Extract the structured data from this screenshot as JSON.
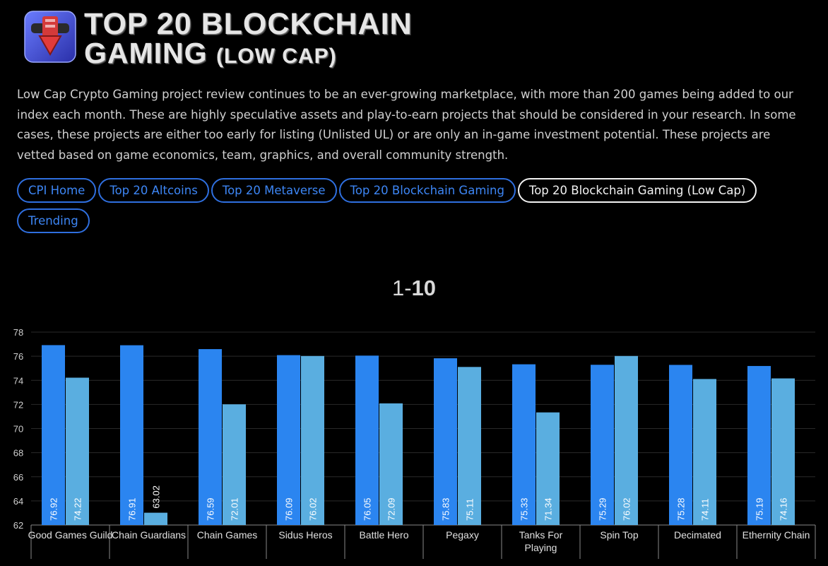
{
  "header": {
    "title_line1": "TOP 20 BLOCKCHAIN",
    "title_line2_main": "GAMING",
    "title_line2_sub": "(LOW CAP)"
  },
  "intro_text": "Low Cap Crypto Gaming project review continues to be an ever-growing marketplace, with more than 200 games being added to our index each month. These are highly speculative assets and play-to-earn projects that should be considered in your research. In some cases, these projects are either too early for listing (Unlisted UL) or are only an in-game investment potential. These projects are vetted based on game economics, team, graphics, and overall community strength.",
  "nav": {
    "items": [
      {
        "label": "CPI Home",
        "active": false
      },
      {
        "label": "Top 20 Altcoins",
        "active": false
      },
      {
        "label": "Top 20 Metaverse",
        "active": false
      },
      {
        "label": "Top 20 Blockchain Gaming",
        "active": false
      },
      {
        "label": "Top 20 Blockchain Gaming (Low Cap)",
        "active": true
      },
      {
        "label": "Trending",
        "active": false
      }
    ]
  },
  "chart_title": {
    "prefix": "1-",
    "bold": "10"
  },
  "colors": {
    "series1": "#2b85f0",
    "series2": "#5aaee0",
    "pill_border": "#2f6fdf",
    "pill_text": "#3d86f5",
    "background": "#000000"
  },
  "icons": {
    "logo": "blockchain-gaming-logo"
  },
  "chart_data": {
    "type": "bar",
    "title": "1-10",
    "categories": [
      "Good Games Guild",
      "Chain Guardians",
      "Chain Games",
      "Sidus Heros",
      "Battle Hero",
      "Pegaxy",
      "Tanks For Playing",
      "Spin Top",
      "Decimated",
      "Ethernity Chain"
    ],
    "series": [
      {
        "values": [
          76.92,
          76.91,
          76.59,
          76.09,
          76.05,
          75.83,
          75.33,
          75.29,
          75.28,
          75.19
        ]
      },
      {
        "values": [
          74.22,
          63.02,
          72.01,
          76.02,
          72.09,
          75.11,
          71.34,
          76.02,
          74.11,
          74.16
        ]
      }
    ],
    "ylim": [
      62,
      78
    ],
    "yticks": [
      62,
      64,
      66,
      68,
      70,
      72,
      74,
      76,
      78
    ],
    "grid": true,
    "legend": "none"
  }
}
